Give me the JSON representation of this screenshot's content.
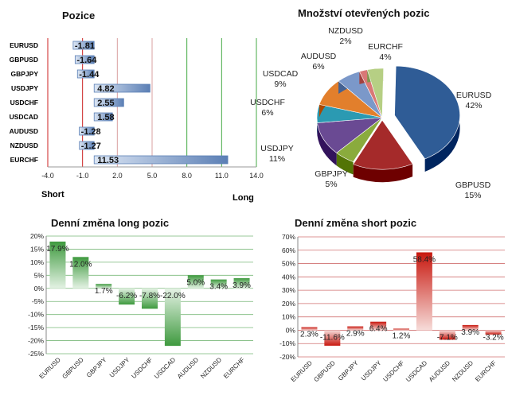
{
  "chart_data": [
    {
      "type": "bar",
      "orientation": "horizontal",
      "title": "Pozice",
      "categories": [
        "EURUSD",
        "GBPUSD",
        "GBPJPY",
        "USDJPY",
        "USDCHF",
        "USDCAD",
        "AUDUSD",
        "NZDUSD",
        "EURCHF"
      ],
      "values": [
        -1.81,
        -1.64,
        -1.44,
        4.82,
        2.55,
        1.58,
        -1.28,
        -1.27,
        11.53
      ],
      "value_labels": [
        "-1.81",
        "-1.64",
        "-1.44",
        "4.82",
        "2.55",
        "1.58",
        "-1.28",
        "-1.27",
        "11.53"
      ],
      "xlim": [
        -4.0,
        14.0
      ],
      "xticks": [
        "-4.0",
        "-1.0",
        "2.0",
        "5.0",
        "8.0",
        "11.0",
        "14.0"
      ],
      "left_label": "Short",
      "right_label": "Long",
      "colors": {
        "bar": "#5b7fb5",
        "bar_light": "#dce6f4",
        "short_line": "#cc2222",
        "long_line": "#44aa44"
      }
    },
    {
      "type": "pie",
      "title": "Množství otevřených pozic",
      "slices": [
        {
          "label": "EURUSD",
          "value": 42,
          "value_label": "42%",
          "color": "#2f5c96"
        },
        {
          "label": "GBPUSD",
          "value": 15,
          "value_label": "15%",
          "color": "#a52a2a"
        },
        {
          "label": "GBPJPY",
          "value": 5,
          "value_label": "5%",
          "color": "#8aab3d"
        },
        {
          "label": "USDJPY",
          "value": 11,
          "value_label": "11%",
          "color": "#6a4a93"
        },
        {
          "label": "USDCHF",
          "value": 6,
          "value_label": "6%",
          "color": "#2b9ab2"
        },
        {
          "label": "USDCAD",
          "value": 9,
          "value_label": "9%",
          "color": "#e27f2c"
        },
        {
          "label": "AUDUSD",
          "value": 6,
          "value_label": "6%",
          "color": "#7b98c9"
        },
        {
          "label": "NZDUSD",
          "value": 2,
          "value_label": "2%",
          "color": "#d97876"
        },
        {
          "label": "EURCHF",
          "value": 4,
          "value_label": "4%",
          "color": "#b6cf84"
        }
      ]
    },
    {
      "type": "bar",
      "title": "Denní změna long pozic",
      "categories": [
        "EURUSD",
        "GBPUSD",
        "GBPJPY",
        "USDJPY",
        "USDCHF",
        "USDCAD",
        "AUDUSD",
        "NZDUSD",
        "EURCHF"
      ],
      "values": [
        17.9,
        12.0,
        1.7,
        -6.2,
        -7.8,
        -22.0,
        5.0,
        3.4,
        3.9
      ],
      "value_labels": [
        "17.9%",
        "12.0%",
        "1.7%",
        "-6.2%",
        "-7.8%",
        "-22.0%",
        "5.0%",
        "3.4%",
        "3.9%"
      ],
      "ylim": [
        -25,
        20
      ],
      "yticks": [
        "20%",
        "15%",
        "10%",
        "5%",
        "0%",
        "-5%",
        "-10%",
        "-15%",
        "-20%",
        "-25%"
      ],
      "colors": {
        "bar": "#3f9a3f",
        "bar_light": "#e4f2e4",
        "grid": "#79b879"
      }
    },
    {
      "type": "bar",
      "title": "Denní změna short pozic",
      "categories": [
        "EURUSD",
        "GBPUSD",
        "GBPJPY",
        "USDJPY",
        "USDCHF",
        "USDCAD",
        "AUDUSD",
        "NZDUSD",
        "EURCHF"
      ],
      "values": [
        2.3,
        -11.6,
        2.9,
        6.4,
        1.2,
        58.4,
        -7.1,
        3.9,
        -3.2
      ],
      "value_labels": [
        "2.3%",
        "-11.6%",
        "2.9%",
        "6.4%",
        "1.2%",
        "58.4%",
        "-7.1%",
        "3.9%",
        "-3.2%"
      ],
      "ylim": [
        -20,
        70
      ],
      "yticks": [
        "70%",
        "60%",
        "50%",
        "40%",
        "30%",
        "20%",
        "10%",
        "0%",
        "-10%",
        "-20%"
      ],
      "colors": {
        "bar": "#c8180f",
        "bar_light": "#f6dcd9",
        "grid": "#d07070"
      }
    }
  ]
}
